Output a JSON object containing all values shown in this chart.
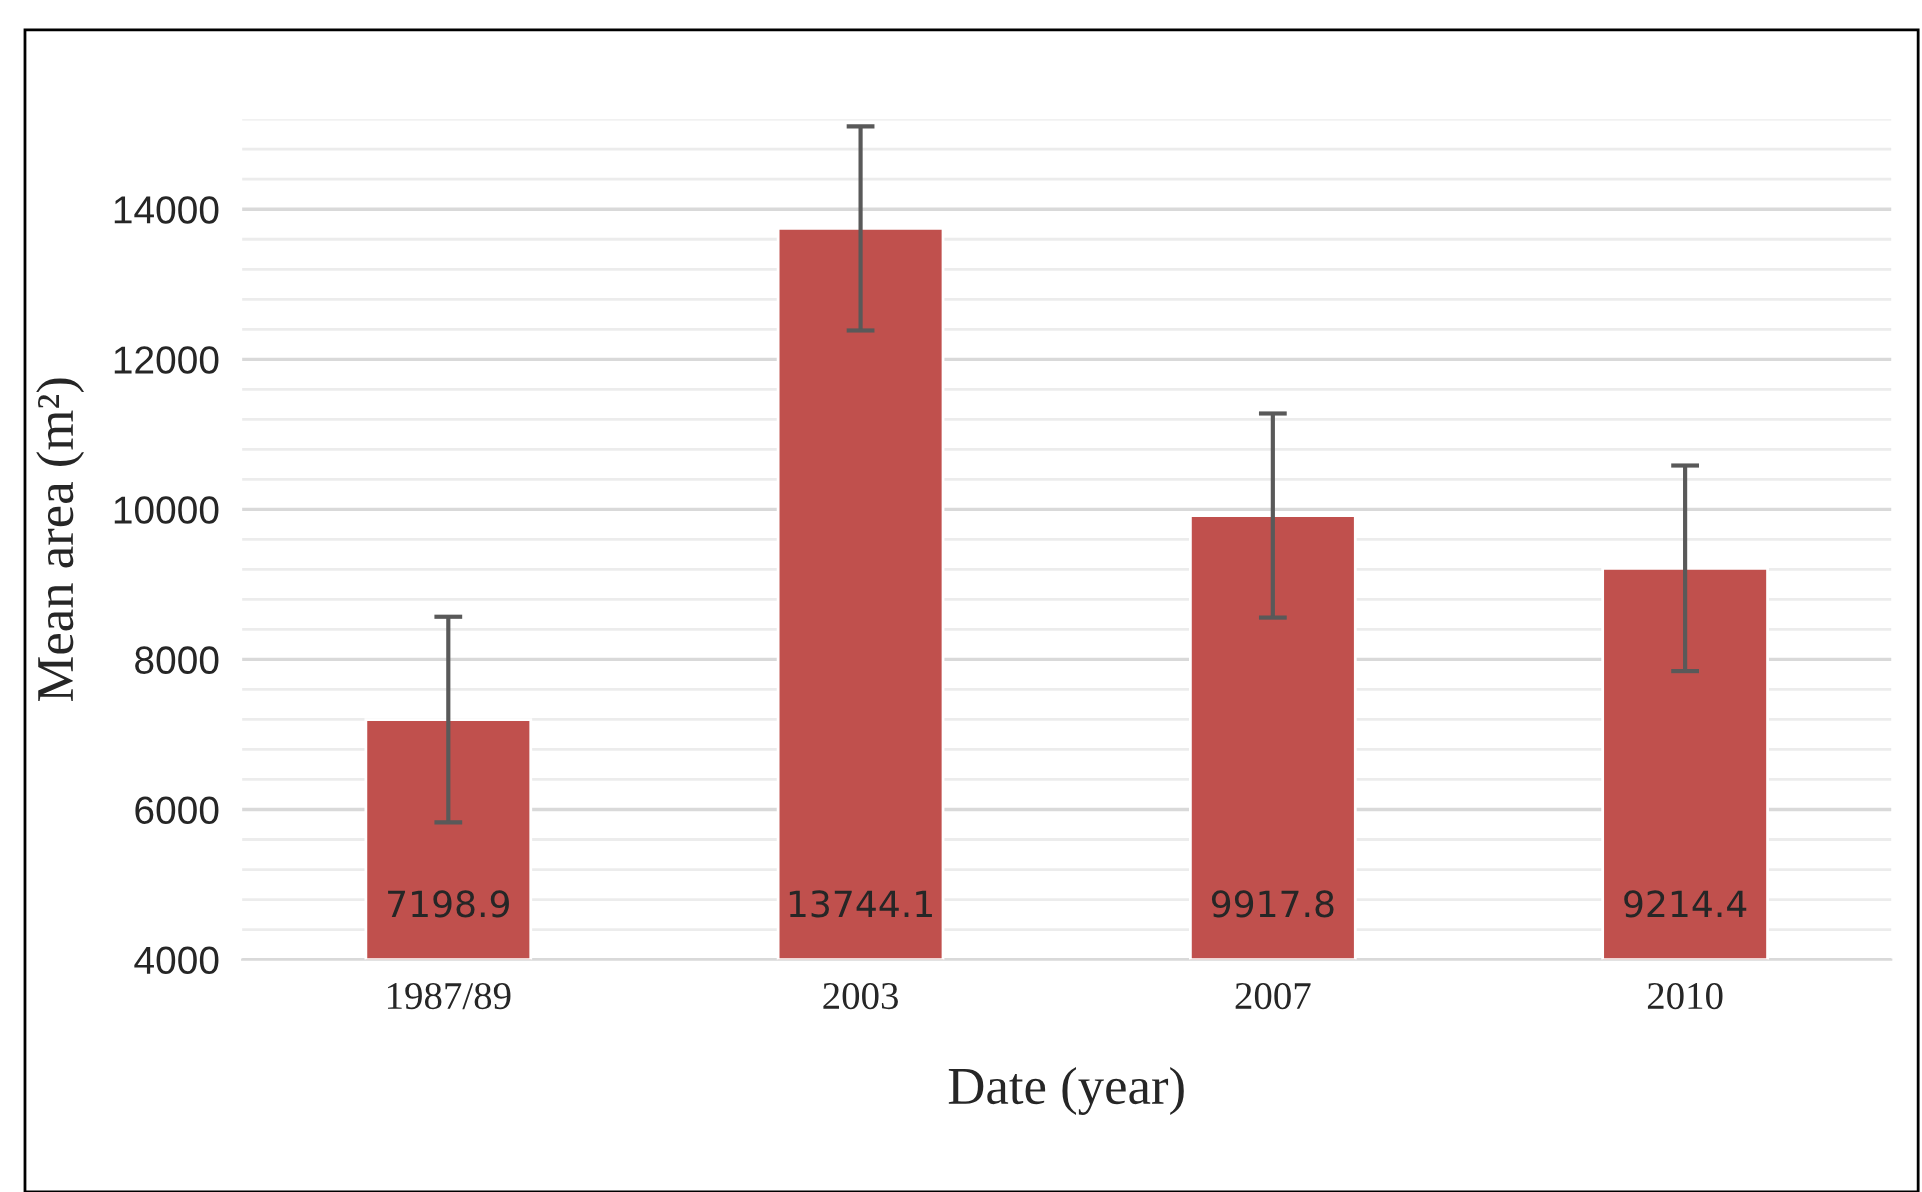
{
  "chart_data": {
    "type": "bar",
    "xlabel": "Date (year)",
    "ylabel": "Mean area (m²)",
    "categories": [
      "1987/89",
      "2003",
      "2007",
      "2010"
    ],
    "values": [
      7198.9,
      13744.1,
      9917.8,
      9214.4
    ],
    "errors": [
      1370,
      1360,
      1360,
      1370
    ],
    "color": "#c0504d",
    "ylim": [
      4000,
      15200
    ],
    "yticks": [
      4000,
      6000,
      8000,
      10000,
      12000,
      14000
    ],
    "grid": "y",
    "data_labels": true
  }
}
